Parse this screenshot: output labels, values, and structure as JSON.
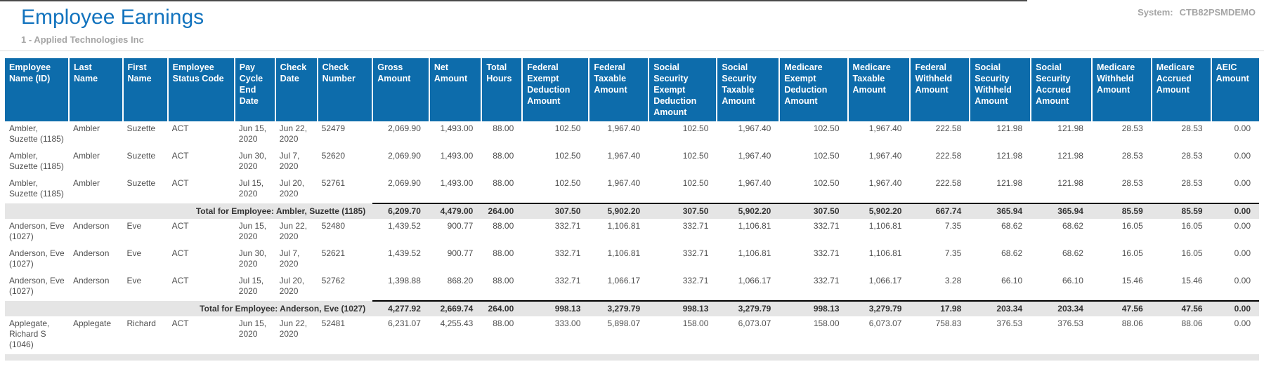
{
  "header": {
    "title": "Employee Earnings",
    "company": "1 - Applied Technologies Inc",
    "system_label": "System:",
    "system_value": "CTB82PSMDEMO"
  },
  "colors": {
    "title_blue": "#1273BE",
    "header_blue": "#0D6CAB",
    "total_row_bg": "#E5E5E5",
    "muted_gray": "#A5A5A5",
    "body_text": "#4E4E4E"
  },
  "table": {
    "columns": [
      "Employee Name (ID)",
      "Last Name",
      "First Name",
      "Employee Status Code",
      "Pay Cycle End Date",
      "Check Date",
      "Check Number",
      "Gross Amount",
      "Net Amount",
      "Total Hours",
      "Federal Exempt Deduction Amount",
      "Federal Taxable Amount",
      "Social Security Exempt Deduction Amount",
      "Social Security Taxable Amount",
      "Medicare Exempt Deduction Amount",
      "Medicare Taxable Amount",
      "Federal Withheld Amount",
      "Social Security Withheld Amount",
      "Social Security Accrued Amount",
      "Medicare Withheld Amount",
      "Medicare Accrued Amount",
      "AEIC Amount"
    ],
    "groups": [
      {
        "rows": [
          [
            "Ambler, Suzette (1185)",
            "Ambler",
            "Suzette",
            "ACT",
            "Jun 15, 2020",
            "Jun 22, 2020",
            "52479",
            "2,069.90",
            "1,493.00",
            "88.00",
            "102.50",
            "1,967.40",
            "102.50",
            "1,967.40",
            "102.50",
            "1,967.40",
            "222.58",
            "121.98",
            "121.98",
            "28.53",
            "28.53",
            "0.00"
          ],
          [
            "Ambler, Suzette (1185)",
            "Ambler",
            "Suzette",
            "ACT",
            "Jun 30, 2020",
            "Jul 7, 2020",
            "52620",
            "2,069.90",
            "1,493.00",
            "88.00",
            "102.50",
            "1,967.40",
            "102.50",
            "1,967.40",
            "102.50",
            "1,967.40",
            "222.58",
            "121.98",
            "121.98",
            "28.53",
            "28.53",
            "0.00"
          ],
          [
            "Ambler, Suzette (1185)",
            "Ambler",
            "Suzette",
            "ACT",
            "Jul 15, 2020",
            "Jul 20, 2020",
            "52761",
            "2,069.90",
            "1,493.00",
            "88.00",
            "102.50",
            "1,967.40",
            "102.50",
            "1,967.40",
            "102.50",
            "1,967.40",
            "222.58",
            "121.98",
            "121.98",
            "28.53",
            "28.53",
            "0.00"
          ]
        ],
        "total": {
          "label": "Total for Employee: Ambler, Suzette (1185)",
          "values": [
            "6,209.70",
            "4,479.00",
            "264.00",
            "307.50",
            "5,902.20",
            "307.50",
            "5,902.20",
            "307.50",
            "5,902.20",
            "667.74",
            "365.94",
            "365.94",
            "85.59",
            "85.59",
            "0.00"
          ]
        }
      },
      {
        "rows": [
          [
            "Anderson, Eve (1027)",
            "Anderson",
            "Eve",
            "ACT",
            "Jun 15, 2020",
            "Jun 22, 2020",
            "52480",
            "1,439.52",
            "900.77",
            "88.00",
            "332.71",
            "1,106.81",
            "332.71",
            "1,106.81",
            "332.71",
            "1,106.81",
            "7.35",
            "68.62",
            "68.62",
            "16.05",
            "16.05",
            "0.00"
          ],
          [
            "Anderson, Eve (1027)",
            "Anderson",
            "Eve",
            "ACT",
            "Jun 30, 2020",
            "Jul 7, 2020",
            "52621",
            "1,439.52",
            "900.77",
            "88.00",
            "332.71",
            "1,106.81",
            "332.71",
            "1,106.81",
            "332.71",
            "1,106.81",
            "7.35",
            "68.62",
            "68.62",
            "16.05",
            "16.05",
            "0.00"
          ],
          [
            "Anderson, Eve (1027)",
            "Anderson",
            "Eve",
            "ACT",
            "Jul 15, 2020",
            "Jul 20, 2020",
            "52762",
            "1,398.88",
            "868.20",
            "88.00",
            "332.71",
            "1,066.17",
            "332.71",
            "1,066.17",
            "332.71",
            "1,066.17",
            "3.28",
            "66.10",
            "66.10",
            "15.46",
            "15.46",
            "0.00"
          ]
        ],
        "total": {
          "label": "Total for Employee: Anderson, Eve (1027)",
          "values": [
            "4,277.92",
            "2,669.74",
            "264.00",
            "998.13",
            "3,279.79",
            "998.13",
            "3,279.79",
            "998.13",
            "3,279.79",
            "17.98",
            "203.34",
            "203.34",
            "47.56",
            "47.56",
            "0.00"
          ]
        }
      },
      {
        "rows": [
          [
            "Applegate, Richard S (1046)",
            "Applegate",
            "Richard",
            "ACT",
            "Jun 15, 2020",
            "Jun 22, 2020",
            "52481",
            "6,231.07",
            "4,255.43",
            "88.00",
            "333.00",
            "5,898.07",
            "158.00",
            "6,073.07",
            "158.00",
            "6,073.07",
            "758.83",
            "376.53",
            "376.53",
            "88.06",
            "88.06",
            "0.00"
          ]
        ]
      }
    ]
  }
}
